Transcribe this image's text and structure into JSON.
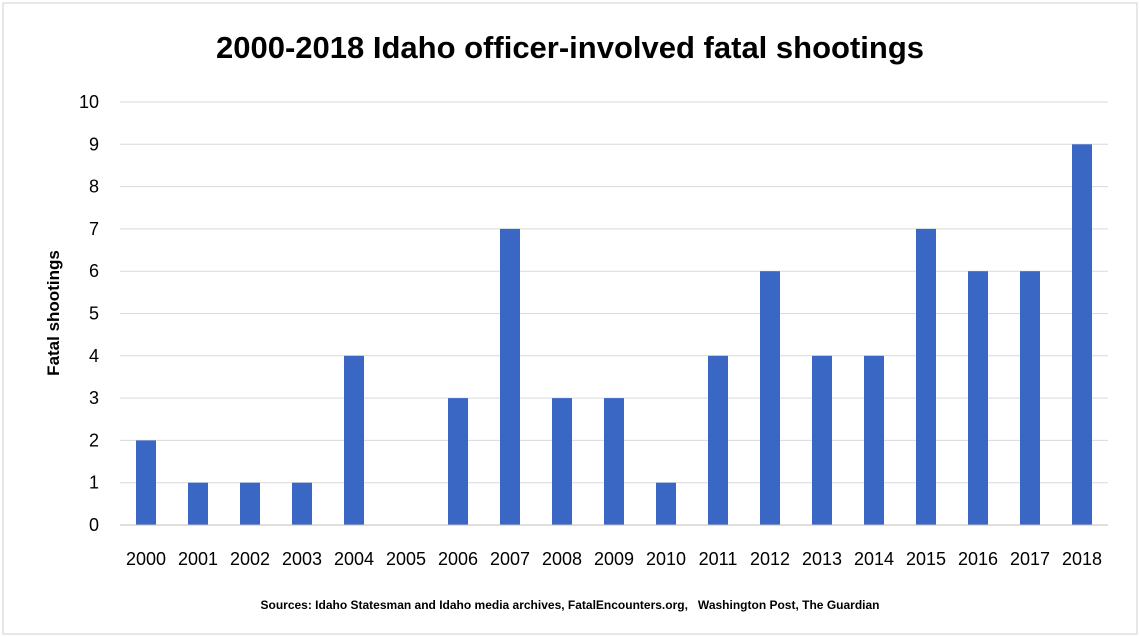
{
  "chart_data": {
    "type": "bar",
    "title": "2000-2018 Idaho officer-involved fatal shootings",
    "ylabel": "Fatal shootings",
    "xlabel": "",
    "categories": [
      "2000",
      "2001",
      "2002",
      "2003",
      "2004",
      "2005",
      "2006",
      "2007",
      "2008",
      "2009",
      "2010",
      "2011",
      "2012",
      "2013",
      "2014",
      "2015",
      "2016",
      "2017",
      "2018"
    ],
    "values": [
      2,
      1,
      1,
      1,
      4,
      0,
      3,
      7,
      3,
      3,
      1,
      4,
      6,
      4,
      4,
      7,
      6,
      6,
      9
    ],
    "ylim": [
      0,
      10
    ],
    "yticks": [
      "0",
      "1",
      "2",
      "3",
      "4",
      "5",
      "6",
      "7",
      "8",
      "9",
      "10"
    ],
    "grid": true,
    "legend": "none",
    "bar_color": "#3a66c4",
    "grid_color": "#d9d9d9",
    "source": "Sources: Idaho Statesman and Idaho media archives, FatalEncounters.org,   Washington Post, The Guardian"
  }
}
